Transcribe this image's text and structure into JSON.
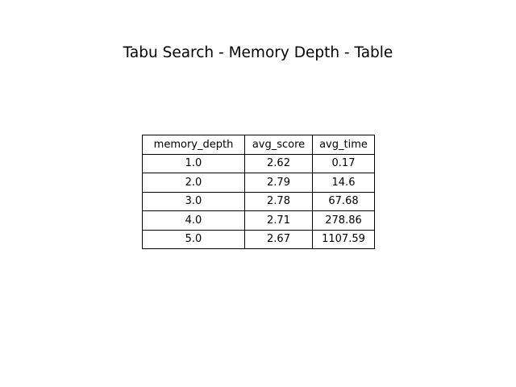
{
  "chart_data": {
    "type": "table",
    "title": "Tabu Search - Memory Depth - Table",
    "columns": [
      "memory_depth",
      "avg_score",
      "avg_time"
    ],
    "rows": [
      [
        "1.0",
        "2.62",
        "0.17"
      ],
      [
        "2.0",
        "2.79",
        "14.6"
      ],
      [
        "3.0",
        "2.78",
        "67.68"
      ],
      [
        "4.0",
        "2.71",
        "278.86"
      ],
      [
        "5.0",
        "2.67",
        "1107.59"
      ]
    ]
  }
}
